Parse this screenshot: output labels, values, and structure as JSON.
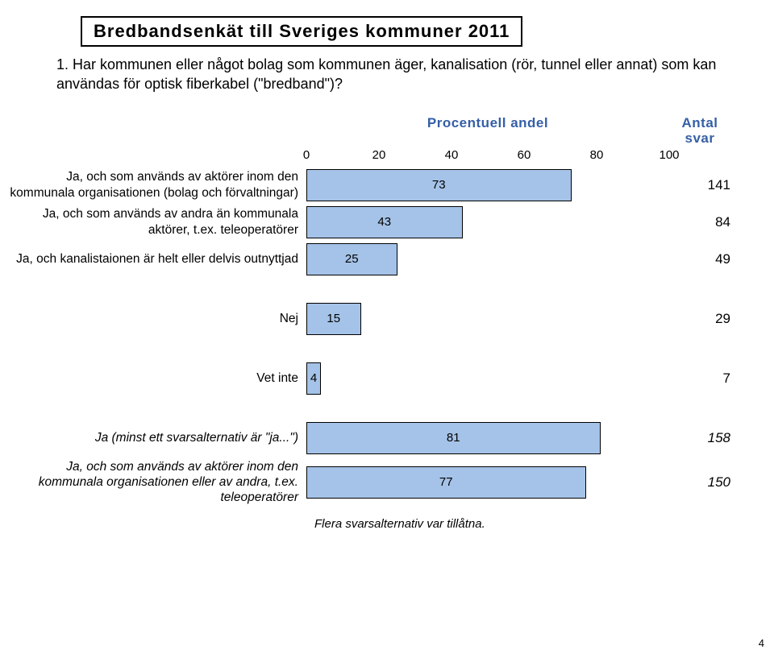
{
  "title": "Bredbandsenkät till Sveriges kommuner 2011",
  "question": "1. Har kommunen eller något bolag som kommunen äger, kanalisation (rör, tunnel eller annat) som kan användas för optisk fiberkabel (\"bredband\")?",
  "header_percent": "Procentuell andel",
  "header_count": "Antal svar",
  "axis": {
    "min": 0,
    "max": 100,
    "ticks": [
      0,
      20,
      40,
      60,
      80,
      100
    ]
  },
  "bar_color": "#a5c3e8",
  "bar_border_color": "#000000",
  "tick_fontsize": 15,
  "label_fontsize": 15.5,
  "count_fontsize": 17,
  "groups": [
    {
      "rows": [
        {
          "label": "Ja, och som används av aktörer inom den kommunala organisationen (bolag och förvaltningar)",
          "value": 73,
          "count": 141,
          "italic": false
        },
        {
          "label": "Ja, och som används av andra än kommunala aktörer, t.ex. teleoperatörer",
          "value": 43,
          "count": 84,
          "italic": false
        },
        {
          "label": "Ja, och kanalistaionen är helt eller delvis outnyttjad",
          "value": 25,
          "count": 49,
          "italic": false
        }
      ]
    },
    {
      "rows": [
        {
          "label": "Nej",
          "value": 15,
          "count": 29,
          "italic": false
        }
      ]
    },
    {
      "rows": [
        {
          "label": "Vet inte",
          "value": 4,
          "count": 7,
          "italic": false
        }
      ]
    },
    {
      "rows": [
        {
          "label": "Ja (minst ett svarsalternativ är \"ja...\")",
          "value": 81,
          "count": 158,
          "italic": true
        },
        {
          "label": "Ja, och som används av aktörer inom den kommunala organisationen eller av andra, t.ex. teleoperatörer",
          "value": 77,
          "count": 150,
          "italic": true
        }
      ]
    }
  ],
  "footnote": "Flera svarsalternativ var tillåtna.",
  "page_number": "4"
}
